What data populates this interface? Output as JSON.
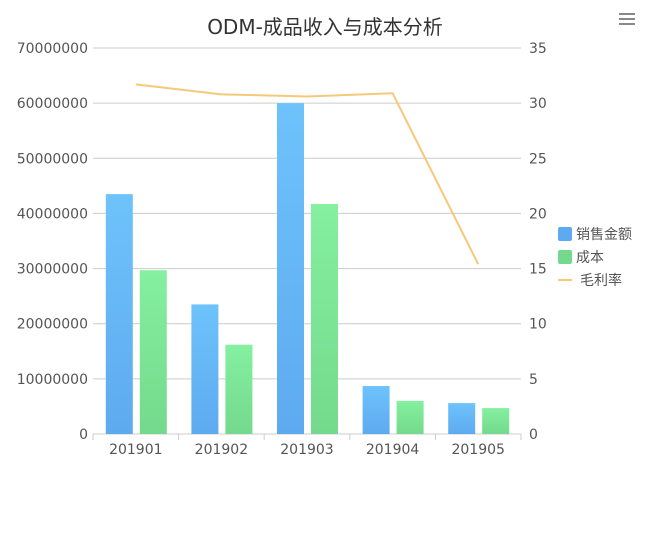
{
  "toolbar": {
    "menu_icon": "hamburger-menu-icon"
  },
  "colors": {
    "bar_sales_top": "#6ec3fb",
    "bar_sales_bottom": "#5eaaf0",
    "bar_cost_top": "#84f0a0",
    "bar_cost_bottom": "#74d98c",
    "line_margin": "#f5c97a",
    "grid": "#cccccc",
    "text": "#555555",
    "title": "#333333"
  },
  "chart_data": {
    "type": "bar",
    "title": "ODM-成品收入与成本分析",
    "categories": [
      "201901",
      "201902",
      "201903",
      "201904",
      "201905"
    ],
    "series": [
      {
        "name": "销售金额",
        "type": "bar",
        "axis": "left",
        "values": [
          43500000,
          23500000,
          60000000,
          8700000,
          5600000
        ]
      },
      {
        "name": "成本",
        "type": "bar",
        "axis": "left",
        "values": [
          29700000,
          16200000,
          41700000,
          6000000,
          4700000
        ]
      },
      {
        "name": "毛利率",
        "type": "line",
        "axis": "right",
        "values": [
          31.7,
          30.8,
          30.6,
          30.9,
          15.4
        ]
      }
    ],
    "y_left": {
      "min": 0,
      "max": 70000000,
      "step": 10000000,
      "ticks": [
        "0",
        "10000000",
        "20000000",
        "30000000",
        "40000000",
        "50000000",
        "60000000",
        "70000000"
      ]
    },
    "y_right": {
      "min": 0,
      "max": 35,
      "step": 5,
      "ticks": [
        "0",
        "5",
        "10",
        "15",
        "20",
        "25",
        "30",
        "35"
      ]
    },
    "grid": true,
    "legend_position": "right"
  }
}
